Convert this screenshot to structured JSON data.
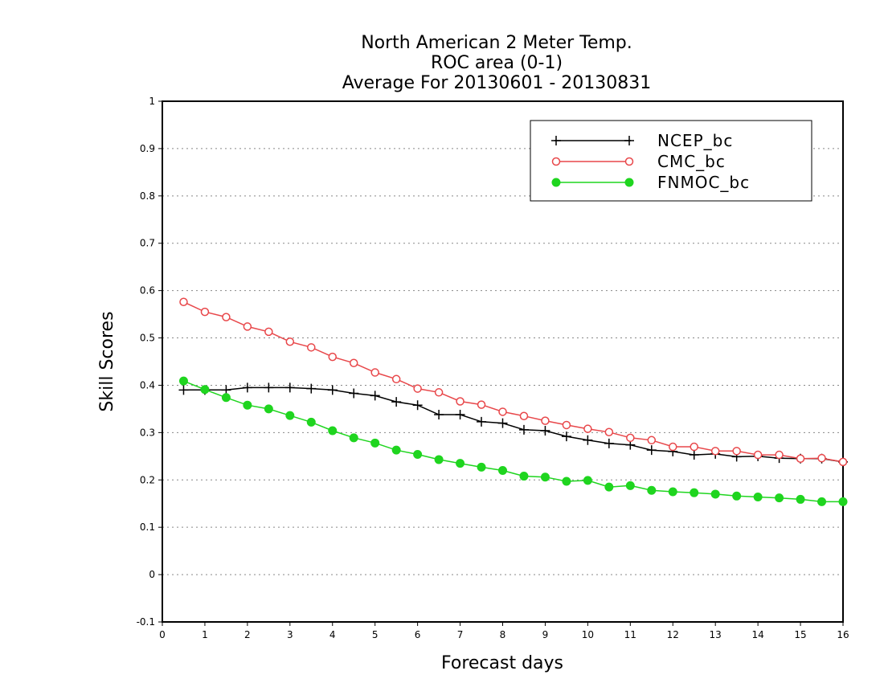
{
  "chart_data": {
    "type": "line",
    "title": [
      "North American 2 Meter Temp.",
      "ROC area (0-1)",
      "Average For 20130601 - 20130831"
    ],
    "xlabel": "Forecast days",
    "ylabel": "Skill Scores",
    "xlim": [
      0,
      16
    ],
    "ylim": [
      -0.1,
      1
    ],
    "xticks": [
      0,
      1,
      2,
      3,
      4,
      5,
      6,
      7,
      8,
      9,
      10,
      11,
      12,
      13,
      14,
      15,
      16
    ],
    "yticks": [
      -0.1,
      0,
      0.1,
      0.2,
      0.3,
      0.4,
      0.5,
      0.6,
      0.7,
      0.8,
      0.9,
      1
    ],
    "ytick_labels": [
      "-0.1",
      "0",
      "0.1",
      "0.2",
      "0.3",
      "0.4",
      "0.5",
      "0.6",
      "0.7",
      "0.8",
      "0.9",
      "1"
    ],
    "grid": "horizontal-dotted",
    "legend_position": "top-right",
    "x": [
      0.5,
      1,
      1.5,
      2,
      2.5,
      3,
      3.5,
      4,
      4.5,
      5,
      5.5,
      6,
      6.5,
      7,
      7.5,
      8,
      8.5,
      9,
      9.5,
      10,
      10.5,
      11,
      11.5,
      12,
      12.5,
      13,
      13.5,
      14,
      14.5,
      15,
      15.5,
      16
    ],
    "series": [
      {
        "name": "NCEP_bc",
        "color": "#000000",
        "marker": "plus",
        "values": [
          0.39,
          0.39,
          0.39,
          0.395,
          0.395,
          0.395,
          0.393,
          0.39,
          0.383,
          0.378,
          0.365,
          0.358,
          0.338,
          0.338,
          0.323,
          0.32,
          0.306,
          0.304,
          0.292,
          0.284,
          0.277,
          0.274,
          0.263,
          0.26,
          0.253,
          0.255,
          0.249,
          0.25,
          0.246,
          0.245,
          0.245,
          0.238
        ]
      },
      {
        "name": "CMC_bc",
        "color": "#e8474a",
        "marker": "open-circle",
        "values": [
          0.576,
          0.555,
          0.544,
          0.524,
          0.513,
          0.492,
          0.48,
          0.46,
          0.447,
          0.427,
          0.413,
          0.393,
          0.385,
          0.366,
          0.359,
          0.344,
          0.335,
          0.325,
          0.316,
          0.308,
          0.301,
          0.289,
          0.284,
          0.27,
          0.27,
          0.261,
          0.261,
          0.253,
          0.253,
          0.245,
          0.246,
          0.238
        ]
      },
      {
        "name": "FNMOC_bc",
        "color": "#1fd51f",
        "marker": "filled-circle",
        "values": [
          0.409,
          0.391,
          0.374,
          0.358,
          0.35,
          0.336,
          0.322,
          0.304,
          0.289,
          0.278,
          0.263,
          0.254,
          0.243,
          0.235,
          0.227,
          0.22,
          0.208,
          0.206,
          0.197,
          0.199,
          0.185,
          0.188,
          0.178,
          0.175,
          0.173,
          0.17,
          0.166,
          0.164,
          0.162,
          0.159,
          0.154,
          0.154
        ]
      }
    ]
  }
}
